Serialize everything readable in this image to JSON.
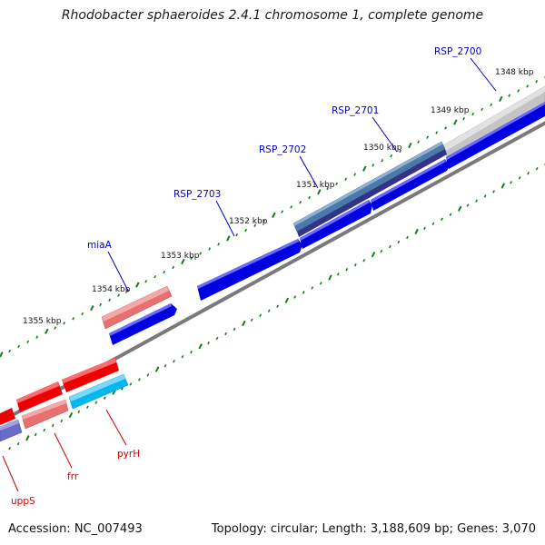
{
  "title": "Rhodobacter sphaeroides 2.4.1 chromosome 1, complete genome",
  "footer": {
    "accession": "Accession: NC_007493",
    "topology": "Topology: circular; Length: 3,188,609 bp; Genes: 3,070"
  },
  "ticks": [
    {
      "label": "1348 kbp"
    },
    {
      "label": "1349 kbp"
    },
    {
      "label": "1350 kbp"
    },
    {
      "label": "1351 kbp"
    },
    {
      "label": "1352 kbp"
    },
    {
      "label": "1353 kbp"
    },
    {
      "label": "1354 kbp"
    },
    {
      "label": "1355 kbp"
    }
  ],
  "genes": [
    {
      "label": "RSP_2700",
      "color": "#0000cc"
    },
    {
      "label": "RSP_2701",
      "color": "#0000cc"
    },
    {
      "label": "RSP_2702",
      "color": "#0000cc"
    },
    {
      "label": "RSP_2703",
      "color": "#0000cc"
    },
    {
      "label": "miaA",
      "color": "#0000cc"
    },
    {
      "label": "pyrH",
      "color": "#cc0000"
    },
    {
      "label": "frr",
      "color": "#cc0000"
    },
    {
      "label": "uppS",
      "color": "#cc0000"
    }
  ],
  "colors": {
    "cds_blue": "#0000e0",
    "cds_red": "#ee0000",
    "gene_pink": "#e87070",
    "rrna_light": "#b8b8b8",
    "steel": "#4a78a8",
    "cyan": "#00b8ee",
    "purple": "#6a6ac8",
    "tick_green": "#1a7a1a",
    "backbone": "#888888"
  }
}
